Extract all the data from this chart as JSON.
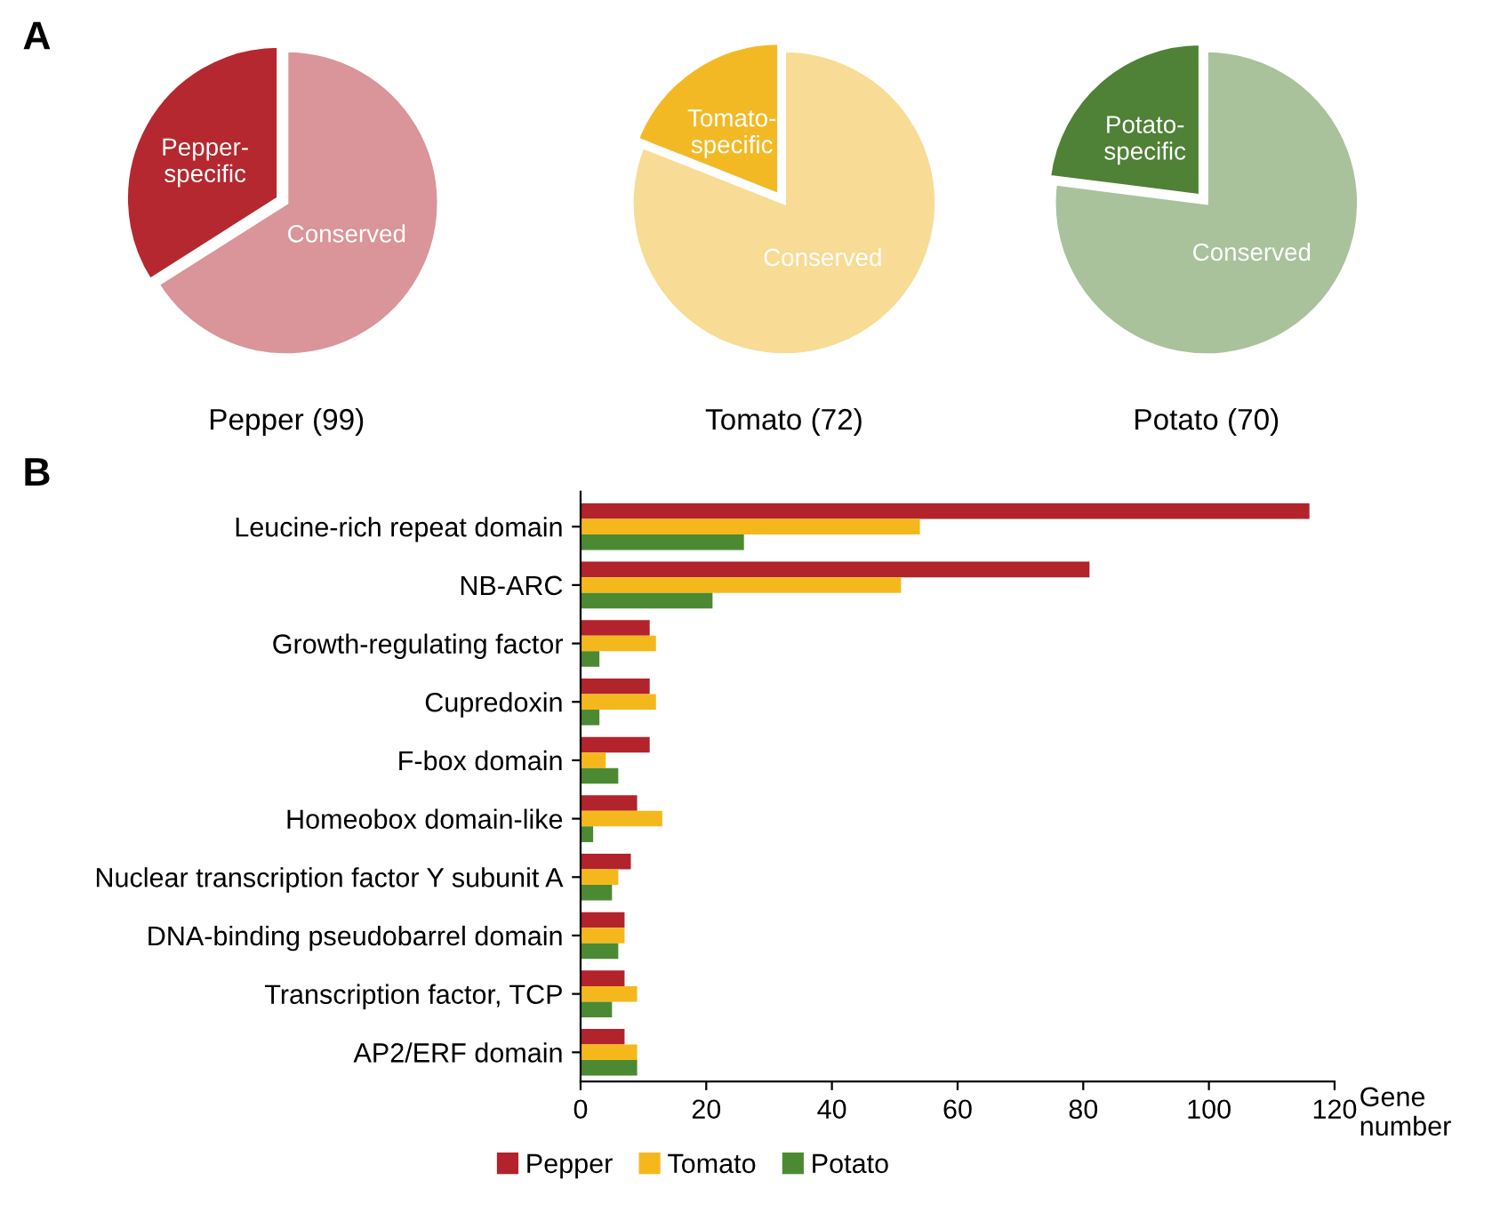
{
  "chart_data": [
    {
      "type": "pie",
      "xlabel": "Pepper (99)",
      "annotations": [
        "A"
      ],
      "categories": [
        "Pepper-\nspecific",
        "Conserved"
      ],
      "values": [
        34,
        66
      ],
      "colors": [
        "#b5282f",
        "#d99599"
      ]
    },
    {
      "type": "pie",
      "xlabel": "Tomato (72)",
      "categories": [
        "Tomato-\nspecific",
        "Conserved"
      ],
      "values": [
        19,
        81
      ],
      "colors": [
        "#f3b925",
        "#f8dc95"
      ]
    },
    {
      "type": "pie",
      "xlabel": "Potato (70)",
      "categories": [
        "Potato-\nspecific",
        "Conserved"
      ],
      "values": [
        23,
        77
      ],
      "colors": [
        "#4f8136",
        "#a9c29c"
      ]
    },
    {
      "type": "bar",
      "orientation": "horizontal",
      "annotations": [
        "B"
      ],
      "xlabel": "Gene\nnumber",
      "categories": [
        "Leucine-rich repeat domain",
        "NB-ARC",
        "Growth-regulating factor",
        "Cupredoxin",
        "F-box domain",
        "Homeobox domain-like",
        "Nuclear transcription factor Y subunit A",
        "DNA-binding pseudobarrel domain",
        "Transcription factor, TCP",
        "AP2/ERF domain"
      ],
      "series": [
        {
          "name": "Pepper",
          "color": "#b3232b",
          "values": [
            116,
            81,
            11,
            11,
            11,
            9,
            8,
            7,
            7,
            7
          ]
        },
        {
          "name": "Tomato",
          "color": "#f5b81c",
          "values": [
            54,
            51,
            12,
            12,
            4,
            13,
            6,
            7,
            9,
            9
          ]
        },
        {
          "name": "Potato",
          "color": "#4b8a32",
          "values": [
            26,
            21,
            3,
            3,
            6,
            2,
            5,
            6,
            5,
            9
          ]
        }
      ],
      "xlim": [
        0,
        120
      ],
      "xticks": [
        0,
        20,
        40,
        60,
        80,
        100,
        120
      ],
      "grid": false,
      "legend": "bottom"
    }
  ]
}
